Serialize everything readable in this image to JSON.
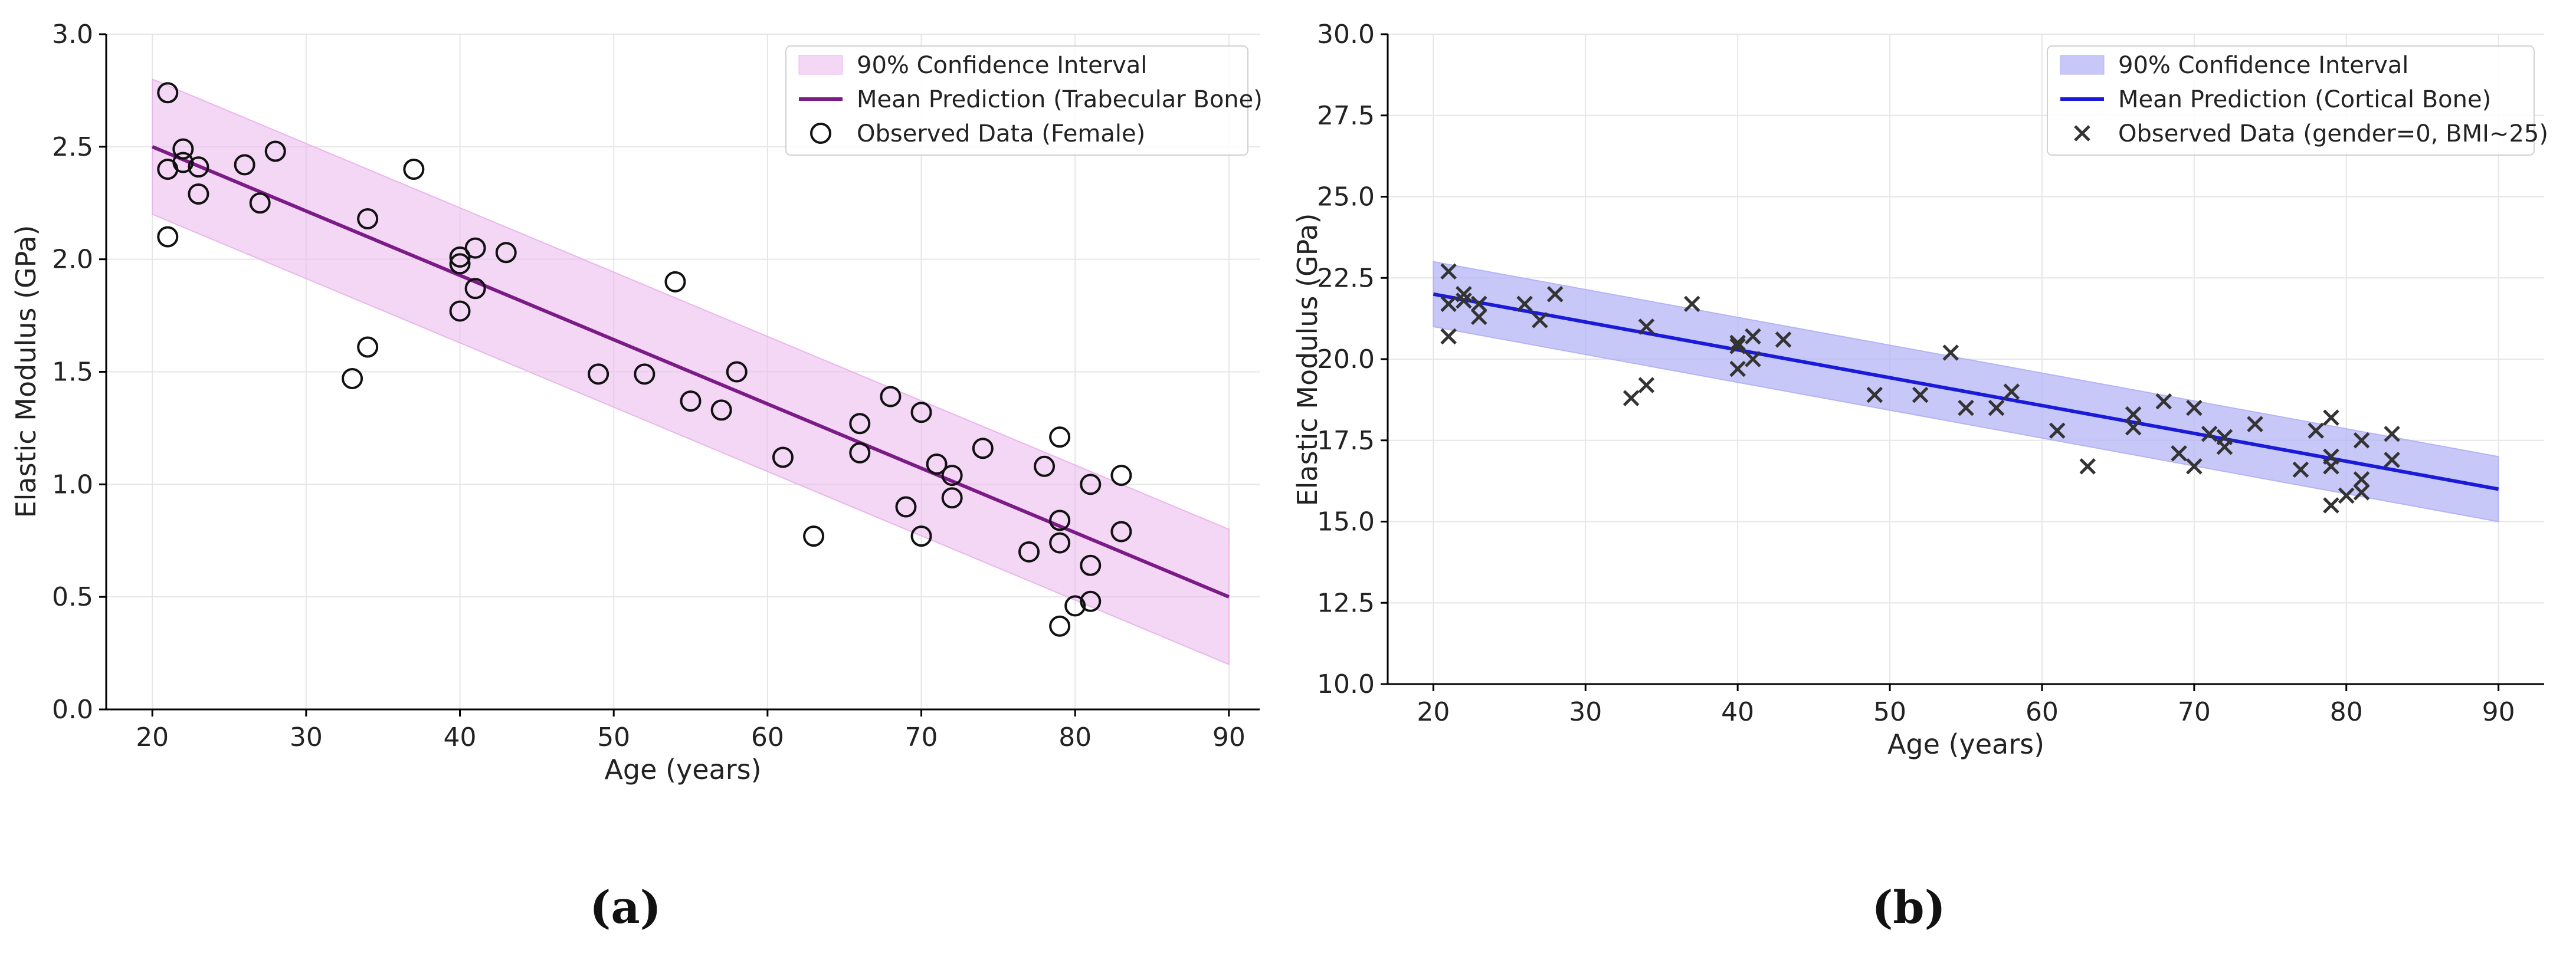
{
  "chart_data": [
    {
      "type": "scatter",
      "panel_label": "(a)",
      "title": "",
      "xlabel": "Age (years)",
      "ylabel": "Elastic Modulus (GPa)",
      "xlim": [
        17,
        92
      ],
      "ylim": [
        0,
        3.0
      ],
      "xticks": [
        20,
        30,
        40,
        50,
        60,
        70,
        80,
        90
      ],
      "xtick_labels": [
        "20",
        "30",
        "40",
        "50",
        "60",
        "70",
        "80",
        "90"
      ],
      "yticks": [
        0.0,
        0.5,
        1.0,
        1.5,
        2.0,
        2.5,
        3.0
      ],
      "ytick_labels": [
        "0.0",
        "0.5",
        "1.0",
        "1.5",
        "2.0",
        "2.5",
        "3.0"
      ],
      "grid": true,
      "legend_position": "top-right",
      "colors": {
        "band": "#e9b6ec",
        "line": "#7b1c86",
        "marker": "#111111"
      },
      "series": [
        {
          "name": "90% Confidence Interval",
          "kind": "band",
          "x": [
            20,
            90
          ],
          "lower": [
            2.2,
            0.2
          ],
          "upper": [
            2.8,
            0.8
          ]
        },
        {
          "name": "Mean Prediction (Trabecular Bone)",
          "kind": "line",
          "x": [
            20,
            90
          ],
          "y": [
            2.5,
            0.5
          ]
        },
        {
          "name": "Observed Data (Female)",
          "kind": "scatter",
          "marker": "circle",
          "points": [
            [
              21,
              2.74
            ],
            [
              21,
              2.4
            ],
            [
              21,
              2.1
            ],
            [
              22,
              2.49
            ],
            [
              22,
              2.43
            ],
            [
              23,
              2.41
            ],
            [
              23,
              2.29
            ],
            [
              26,
              2.42
            ],
            [
              27,
              2.25
            ],
            [
              28,
              2.48
            ],
            [
              33,
              1.47
            ],
            [
              34,
              2.18
            ],
            [
              34,
              1.61
            ],
            [
              37,
              2.4
            ],
            [
              40,
              2.01
            ],
            [
              40,
              1.98
            ],
            [
              40,
              1.77
            ],
            [
              41,
              2.05
            ],
            [
              41,
              1.87
            ],
            [
              43,
              2.03
            ],
            [
              49,
              1.49
            ],
            [
              52,
              1.49
            ],
            [
              54,
              1.9
            ],
            [
              55,
              1.37
            ],
            [
              57,
              1.33
            ],
            [
              58,
              1.5
            ],
            [
              61,
              1.12
            ],
            [
              63,
              0.77
            ],
            [
              66,
              1.27
            ],
            [
              66,
              1.14
            ],
            [
              68,
              1.39
            ],
            [
              69,
              0.9
            ],
            [
              70,
              1.32
            ],
            [
              70,
              0.77
            ],
            [
              71,
              1.09
            ],
            [
              72,
              1.04
            ],
            [
              72,
              0.94
            ],
            [
              74,
              1.16
            ],
            [
              77,
              0.7
            ],
            [
              78,
              1.08
            ],
            [
              79,
              1.21
            ],
            [
              79,
              0.84
            ],
            [
              79,
              0.74
            ],
            [
              79,
              0.37
            ],
            [
              80,
              0.46
            ],
            [
              81,
              1.0
            ],
            [
              81,
              0.64
            ],
            [
              81,
              0.48
            ],
            [
              83,
              1.04
            ],
            [
              83,
              0.79
            ]
          ]
        }
      ]
    },
    {
      "type": "scatter",
      "panel_label": "(b)",
      "title": "",
      "xlabel": "Age (years)",
      "ylabel": "Elastic Modulus (GPa)",
      "xlim": [
        17,
        93
      ],
      "ylim": [
        10.0,
        30.0
      ],
      "xticks": [
        20,
        30,
        40,
        50,
        60,
        70,
        80,
        90
      ],
      "xtick_labels": [
        "20",
        "30",
        "40",
        "50",
        "60",
        "70",
        "80",
        "90"
      ],
      "yticks": [
        10.0,
        12.5,
        15.0,
        17.5,
        20.0,
        22.5,
        25.0,
        27.5,
        30.0
      ],
      "ytick_labels": [
        "10.0",
        "12.5",
        "15.0",
        "17.5",
        "20.0",
        "22.5",
        "25.0",
        "27.5",
        "30.0"
      ],
      "grid": true,
      "legend_position": "top-right",
      "colors": {
        "band": "#b4b4f6",
        "line": "#1a1ad8",
        "marker": "#333333"
      },
      "series": [
        {
          "name": "90% Confidence Interval",
          "kind": "band",
          "x": [
            20,
            90
          ],
          "lower": [
            21.0,
            15.0
          ],
          "upper": [
            23.0,
            17.0
          ]
        },
        {
          "name": "Mean Prediction (Cortical Bone)",
          "kind": "line",
          "x": [
            20,
            90
          ],
          "y": [
            22.0,
            16.0
          ]
        },
        {
          "name": "Observed Data (gender=0, BMI~25)",
          "kind": "scatter",
          "marker": "x",
          "points": [
            [
              21,
              22.7
            ],
            [
              21,
              21.7
            ],
            [
              21,
              20.7
            ],
            [
              22,
              22.0
            ],
            [
              22,
              21.8
            ],
            [
              23,
              21.7
            ],
            [
              23,
              21.3
            ],
            [
              26,
              21.7
            ],
            [
              27,
              21.2
            ],
            [
              28,
              22.0
            ],
            [
              33,
              18.8
            ],
            [
              34,
              21.0
            ],
            [
              34,
              19.2
            ],
            [
              37,
              21.7
            ],
            [
              40,
              20.5
            ],
            [
              40,
              20.4
            ],
            [
              40,
              19.7
            ],
            [
              41,
              20.7
            ],
            [
              41,
              20.0
            ],
            [
              43,
              20.6
            ],
            [
              49,
              18.9
            ],
            [
              52,
              18.9
            ],
            [
              54,
              20.2
            ],
            [
              55,
              18.5
            ],
            [
              57,
              18.5
            ],
            [
              58,
              19.0
            ],
            [
              61,
              17.8
            ],
            [
              63,
              16.7
            ],
            [
              66,
              18.3
            ],
            [
              66,
              17.9
            ],
            [
              68,
              18.7
            ],
            [
              69,
              17.1
            ],
            [
              70,
              18.5
            ],
            [
              70,
              16.7
            ],
            [
              71,
              17.7
            ],
            [
              72,
              17.6
            ],
            [
              72,
              17.3
            ],
            [
              74,
              18.0
            ],
            [
              77,
              16.6
            ],
            [
              78,
              17.8
            ],
            [
              79,
              18.2
            ],
            [
              79,
              17.0
            ],
            [
              79,
              16.7
            ],
            [
              79,
              15.5
            ],
            [
              80,
              15.8
            ],
            [
              81,
              17.5
            ],
            [
              81,
              16.3
            ],
            [
              81,
              15.9
            ],
            [
              83,
              17.7
            ],
            [
              83,
              16.9
            ]
          ]
        }
      ]
    }
  ]
}
